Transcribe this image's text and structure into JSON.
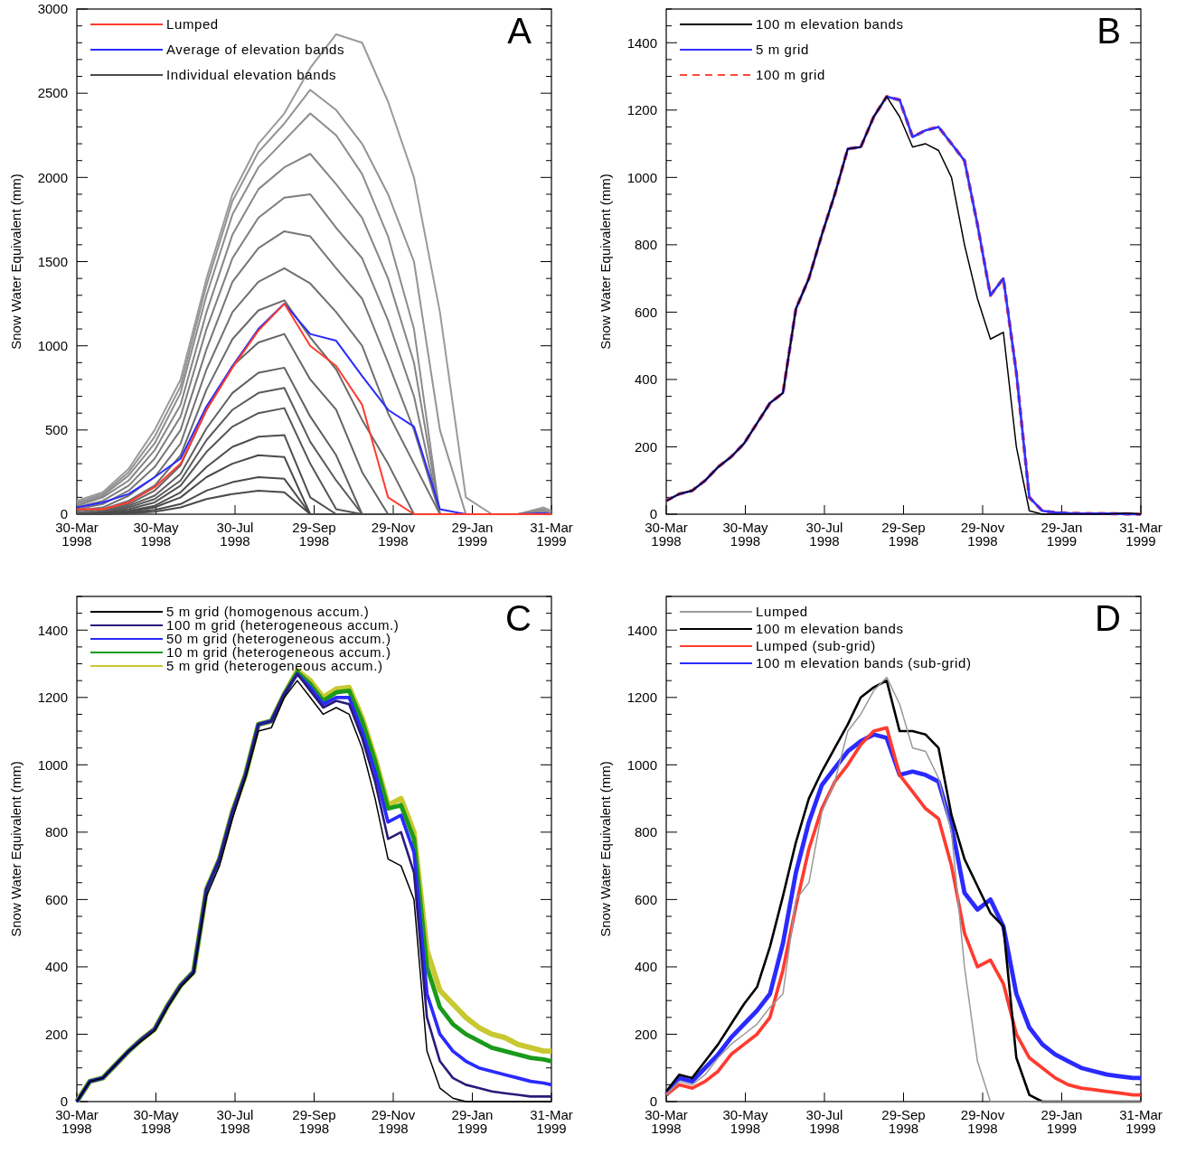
{
  "chart_data": [
    {
      "type": "line",
      "ylabel": "Snow Water Equivalent (mm)",
      "annotations": [
        "A"
      ],
      "legend": "top left",
      "x": [
        "1998-03-30",
        "1998-04-19",
        "1998-05-09",
        "1998-05-29",
        "1998-06-18",
        "1998-07-08",
        "1998-07-28",
        "1998-08-17",
        "1998-09-06",
        "1998-09-26",
        "1998-10-16",
        "1998-11-05",
        "1998-11-25",
        "1998-12-15",
        "1999-01-04",
        "1999-01-24",
        "1999-02-13",
        "1999-03-05",
        "1999-03-25",
        "1999-03-31"
      ],
      "xlim": [
        "1998-03-30",
        "1999-03-31"
      ],
      "xticks": [
        {
          "value": "1998-03-30",
          "label": "30-Mar\n1998"
        },
        {
          "value": "1998-05-30",
          "label": "30-May\n1998"
        },
        {
          "value": "1998-07-30",
          "label": "30-Jul\n1998"
        },
        {
          "value": "1998-09-29",
          "label": "29-Sep\n1998"
        },
        {
          "value": "1998-11-29",
          "label": "29-Nov\n1998"
        },
        {
          "value": "1999-01-29",
          "label": "29-Jan\n1999"
        },
        {
          "value": "1999-03-31",
          "label": "31-Mar\n1999"
        }
      ],
      "ylim": [
        0,
        3000
      ],
      "yticks": [
        0,
        {
          "value": 100,
          "label": null
        },
        {
          "value": 200,
          "label": null
        },
        {
          "value": 300,
          "label": null
        },
        {
          "value": 400,
          "label": null
        },
        500,
        {
          "value": 600,
          "label": null
        },
        {
          "value": 700,
          "label": null
        },
        {
          "value": 800,
          "label": null
        },
        {
          "value": 900,
          "label": null
        },
        1000,
        {
          "value": 1100,
          "label": null
        },
        {
          "value": 1200,
          "label": null
        },
        {
          "value": 1300,
          "label": null
        },
        {
          "value": 1400,
          "label": null
        },
        1500,
        {
          "value": 1600,
          "label": null
        },
        {
          "value": 1700,
          "label": null
        },
        {
          "value": 1800,
          "label": null
        },
        {
          "value": 1900,
          "label": null
        },
        2000,
        {
          "value": 2100,
          "label": null
        },
        {
          "value": 2200,
          "label": null
        },
        {
          "value": 2300,
          "label": null
        },
        {
          "value": 2400,
          "label": null
        },
        2500,
        {
          "value": 2600,
          "label": null
        },
        {
          "value": 2700,
          "label": null
        },
        {
          "value": 2800,
          "label": null
        },
        {
          "value": 2900,
          "label": null
        },
        3000
      ],
      "series": [
        {
          "name": "Lumped",
          "color": "#ff3b2f",
          "values": [
            30,
            30,
            70,
            160,
            300,
            620,
            870,
            1090,
            1250,
            1000,
            880,
            650,
            100,
            0,
            0,
            0,
            0,
            0,
            0,
            0
          ]
        },
        {
          "name": "Average of elevation bands",
          "color": "#2a2aff",
          "values": [
            40,
            70,
            120,
            220,
            330,
            640,
            880,
            1100,
            1250,
            1070,
            1030,
            820,
            620,
            520,
            30,
            0,
            0,
            0,
            5,
            0
          ]
        },
        {
          "name": "Individual elevation bands",
          "color": "#4a4a4a",
          "values": [
            0,
            0,
            5,
            15,
            40,
            90,
            120,
            140,
            130,
            0,
            0,
            0,
            0,
            0,
            0,
            0,
            0,
            0,
            0,
            0
          ]
        },
        {
          "color": "#4a4a4a",
          "values": [
            0,
            0,
            10,
            25,
            60,
            140,
            190,
            220,
            210,
            0,
            0,
            0,
            0,
            0,
            0,
            0,
            0,
            0,
            0,
            0
          ]
        },
        {
          "color": "#4a4a4a",
          "values": [
            0,
            5,
            15,
            40,
            100,
            220,
            300,
            350,
            340,
            0,
            0,
            0,
            0,
            0,
            0,
            0,
            0,
            0,
            0,
            0
          ]
        },
        {
          "color": "#4f4f4f",
          "values": [
            0,
            5,
            20,
            50,
            130,
            280,
            400,
            460,
            470,
            100,
            0,
            0,
            0,
            0,
            0,
            0,
            0,
            0,
            0,
            0
          ]
        },
        {
          "color": "#555555",
          "values": [
            0,
            10,
            30,
            70,
            170,
            370,
            520,
            600,
            630,
            300,
            30,
            0,
            0,
            0,
            0,
            0,
            0,
            0,
            0,
            0
          ]
        },
        {
          "color": "#5a5a5a",
          "values": [
            0,
            10,
            40,
            90,
            200,
            440,
            620,
            720,
            750,
            430,
            200,
            0,
            0,
            0,
            0,
            0,
            0,
            0,
            0,
            0
          ]
        },
        {
          "color": "#5f5f5f",
          "values": [
            0,
            15,
            50,
            110,
            240,
            510,
            720,
            840,
            870,
            580,
            350,
            0,
            0,
            0,
            0,
            0,
            0,
            0,
            0,
            0
          ]
        },
        {
          "color": "#646464",
          "values": [
            0,
            20,
            60,
            140,
            290,
            620,
            880,
            1020,
            1070,
            800,
            620,
            250,
            0,
            0,
            0,
            0,
            0,
            0,
            0,
            0
          ]
        },
        {
          "color": "#6a6a6a",
          "values": [
            10,
            30,
            80,
            170,
            350,
            740,
            1040,
            1210,
            1270,
            1050,
            860,
            560,
            300,
            0,
            0,
            0,
            0,
            0,
            0,
            0
          ]
        },
        {
          "color": "#707070",
          "values": [
            20,
            40,
            110,
            220,
            420,
            860,
            1200,
            1380,
            1460,
            1370,
            1200,
            1000,
            600,
            300,
            0,
            0,
            0,
            0,
            0,
            0
          ]
        },
        {
          "color": "#777777",
          "values": [
            30,
            60,
            140,
            280,
            500,
            980,
            1380,
            1580,
            1680,
            1650,
            1460,
            1280,
            900,
            500,
            0,
            0,
            0,
            0,
            0,
            0
          ]
        },
        {
          "color": "#7e7e7e",
          "values": [
            40,
            80,
            170,
            330,
            580,
            1100,
            1520,
            1760,
            1880,
            1900,
            1700,
            1520,
            1150,
            700,
            0,
            0,
            0,
            0,
            0,
            0
          ]
        },
        {
          "color": "#858585",
          "values": [
            50,
            100,
            200,
            380,
            650,
            1200,
            1660,
            1930,
            2060,
            2140,
            1960,
            1760,
            1400,
            900,
            0,
            0,
            0,
            0,
            10,
            0
          ]
        },
        {
          "color": "#8c8c8c",
          "values": [
            60,
            110,
            230,
            420,
            720,
            1300,
            1780,
            2060,
            2220,
            2380,
            2250,
            2020,
            1650,
            1100,
            0,
            0,
            0,
            0,
            20,
            0
          ]
        },
        {
          "color": "#939393",
          "values": [
            70,
            120,
            250,
            460,
            760,
            1360,
            1860,
            2150,
            2320,
            2520,
            2400,
            2200,
            1900,
            1500,
            500,
            0,
            0,
            0,
            30,
            10
          ]
        },
        {
          "color": "#9a9a9a",
          "values": [
            80,
            130,
            270,
            500,
            800,
            1400,
            1900,
            2200,
            2380,
            2650,
            2850,
            2800,
            2450,
            2000,
            1200,
            100,
            0,
            0,
            40,
            20
          ]
        }
      ]
    },
    {
      "type": "line",
      "ylabel": "Snow Water Equivalent (mm)",
      "annotations": [
        "B"
      ],
      "legend": "top left",
      "x": [
        "1998-03-30",
        "1998-04-09",
        "1998-04-19",
        "1998-04-29",
        "1998-05-09",
        "1998-05-19",
        "1998-05-29",
        "1998-06-08",
        "1998-06-18",
        "1998-06-28",
        "1998-07-08",
        "1998-07-18",
        "1998-07-28",
        "1998-08-07",
        "1998-08-17",
        "1998-08-27",
        "1998-09-06",
        "1998-09-16",
        "1998-09-26",
        "1998-10-06",
        "1998-10-16",
        "1998-10-26",
        "1998-11-05",
        "1998-11-15",
        "1998-11-25",
        "1998-12-05",
        "1998-12-15",
        "1998-12-25",
        "1999-01-04",
        "1999-01-14",
        "1999-01-24",
        "1999-02-03",
        "1999-02-13",
        "1999-02-23",
        "1999-03-05",
        "1999-03-15",
        "1999-03-25",
        "1999-03-31"
      ],
      "xlim": [
        "1998-03-30",
        "1999-03-31"
      ],
      "xticks": [
        {
          "value": "1998-03-30",
          "label": "30-Mar\n1998"
        },
        {
          "value": "1998-05-30",
          "label": "30-May\n1998"
        },
        {
          "value": "1998-07-30",
          "label": "30-Jul\n1998"
        },
        {
          "value": "1998-09-29",
          "label": "29-Sep\n1998"
        },
        {
          "value": "1998-11-29",
          "label": "29-Nov\n1998"
        },
        {
          "value": "1999-01-29",
          "label": "29-Jan\n1999"
        },
        {
          "value": "1999-03-31",
          "label": "31-Mar\n1999"
        }
      ],
      "ylim": [
        0,
        1500
      ],
      "yticks": [
        0,
        {
          "value": 50,
          "label": null
        },
        {
          "value": 100,
          "label": null
        },
        {
          "value": 150,
          "label": null
        },
        200,
        {
          "value": 250,
          "label": null
        },
        {
          "value": 300,
          "label": null
        },
        {
          "value": 350,
          "label": null
        },
        400,
        {
          "value": 450,
          "label": null
        },
        {
          "value": 500,
          "label": null
        },
        {
          "value": 550,
          "label": null
        },
        600,
        {
          "value": 650,
          "label": null
        },
        {
          "value": 700,
          "label": null
        },
        {
          "value": 750,
          "label": null
        },
        800,
        {
          "value": 850,
          "label": null
        },
        {
          "value": 900,
          "label": null
        },
        {
          "value": 950,
          "label": null
        },
        1000,
        {
          "value": 1050,
          "label": null
        },
        {
          "value": 1100,
          "label": null
        },
        {
          "value": 1150,
          "label": null
        },
        1200,
        {
          "value": 1250,
          "label": null
        },
        {
          "value": 1300,
          "label": null
        },
        {
          "value": 1350,
          "label": null
        },
        1400,
        {
          "value": 1450,
          "label": null
        },
        {
          "value": 1500,
          "label": null
        }
      ],
      "series": [
        {
          "name": "100 m elevation bands",
          "color": "#000000",
          "values": [
            40,
            60,
            70,
            100,
            140,
            170,
            210,
            270,
            330,
            360,
            610,
            700,
            830,
            950,
            1085,
            1090,
            1180,
            1240,
            1180,
            1090,
            1100,
            1080,
            1000,
            800,
            640,
            520,
            540,
            200,
            10,
            0,
            0,
            0,
            0,
            0,
            0,
            3,
            3,
            0
          ]
        },
        {
          "name": "5 m grid",
          "color": "#3030ff",
          "values": [
            40,
            60,
            70,
            100,
            140,
            170,
            210,
            270,
            330,
            360,
            610,
            700,
            830,
            950,
            1085,
            1090,
            1180,
            1240,
            1230,
            1120,
            1140,
            1150,
            1100,
            1050,
            860,
            650,
            700,
            420,
            50,
            10,
            5,
            3,
            2,
            2,
            2,
            1,
            0,
            0
          ]
        },
        {
          "name": "100 m grid",
          "color": "#ff4a3a",
          "line_style": "dashed",
          "values": [
            40,
            60,
            70,
            100,
            140,
            170,
            210,
            270,
            330,
            360,
            610,
            700,
            830,
            950,
            1085,
            1090,
            1180,
            1240,
            1230,
            1120,
            1140,
            1150,
            1100,
            1050,
            860,
            650,
            700,
            420,
            50,
            10,
            5,
            3,
            2,
            2,
            2,
            1,
            0,
            0
          ]
        }
      ]
    },
    {
      "type": "line",
      "ylabel": "Snow Water Equivalent (mm)",
      "annotations": [
        "C"
      ],
      "legend": "top left",
      "x": [
        "1998-03-30",
        "1998-04-09",
        "1998-04-19",
        "1998-04-29",
        "1998-05-09",
        "1998-05-19",
        "1998-05-29",
        "1998-06-08",
        "1998-06-18",
        "1998-06-28",
        "1998-07-08",
        "1998-07-18",
        "1998-07-28",
        "1998-08-07",
        "1998-08-17",
        "1998-08-27",
        "1998-09-06",
        "1998-09-16",
        "1998-09-26",
        "1998-10-06",
        "1998-10-16",
        "1998-10-26",
        "1998-11-05",
        "1998-11-15",
        "1998-11-25",
        "1998-12-05",
        "1998-12-15",
        "1998-12-25",
        "1999-01-04",
        "1999-01-14",
        "1999-01-24",
        "1999-02-03",
        "1999-02-13",
        "1999-02-23",
        "1999-03-05",
        "1999-03-15",
        "1999-03-25",
        "1999-03-31"
      ],
      "xlim": [
        "1998-03-30",
        "1999-03-31"
      ],
      "xticks": [
        {
          "value": "1998-03-30",
          "label": "30-Mar\n1998"
        },
        {
          "value": "1998-05-30",
          "label": "30-May\n1998"
        },
        {
          "value": "1998-07-30",
          "label": "30-Jul\n1998"
        },
        {
          "value": "1998-09-29",
          "label": "29-Sep\n1998"
        },
        {
          "value": "1998-11-29",
          "label": "29-Nov\n1998"
        },
        {
          "value": "1999-01-29",
          "label": "29-Jan\n1999"
        },
        {
          "value": "1999-03-31",
          "label": "31-Mar\n1999"
        }
      ],
      "ylim": [
        0,
        1500
      ],
      "yticks": [
        0,
        {
          "value": 50,
          "label": null
        },
        {
          "value": 100,
          "label": null
        },
        {
          "value": 150,
          "label": null
        },
        200,
        {
          "value": 250,
          "label": null
        },
        {
          "value": 300,
          "label": null
        },
        {
          "value": 350,
          "label": null
        },
        400,
        {
          "value": 450,
          "label": null
        },
        {
          "value": 500,
          "label": null
        },
        {
          "value": 550,
          "label": null
        },
        600,
        {
          "value": 650,
          "label": null
        },
        {
          "value": 700,
          "label": null
        },
        {
          "value": 750,
          "label": null
        },
        800,
        {
          "value": 850,
          "label": null
        },
        {
          "value": 900,
          "label": null
        },
        {
          "value": 950,
          "label": null
        },
        1000,
        {
          "value": 1050,
          "label": null
        },
        {
          "value": 1100,
          "label": null
        },
        {
          "value": 1150,
          "label": null
        },
        1200,
        {
          "value": 1250,
          "label": null
        },
        {
          "value": 1300,
          "label": null
        },
        {
          "value": 1350,
          "label": null
        },
        1400,
        {
          "value": 1450,
          "label": null
        },
        {
          "value": 1500,
          "label": null
        }
      ],
      "series": [
        {
          "name": "5 m grid (homogenous accum.)",
          "color": "#000000",
          "values": [
            0,
            60,
            70,
            110,
            150,
            180,
            210,
            280,
            340,
            380,
            610,
            700,
            840,
            960,
            1100,
            1110,
            1200,
            1250,
            1200,
            1150,
            1170,
            1150,
            1050,
            900,
            720,
            700,
            600,
            150,
            40,
            10,
            0,
            0,
            0,
            0,
            0,
            0,
            0,
            0
          ]
        },
        {
          "name": "100 m grid (heterogeneous accum.)",
          "color": "#2a1a7a",
          "values": [
            0,
            60,
            70,
            110,
            150,
            185,
            215,
            285,
            345,
            385,
            630,
            720,
            860,
            970,
            1120,
            1130,
            1210,
            1270,
            1220,
            1170,
            1190,
            1180,
            1080,
            950,
            780,
            800,
            680,
            250,
            120,
            70,
            50,
            40,
            30,
            25,
            20,
            15,
            15,
            15
          ]
        },
        {
          "name": "50 m grid (heterogeneous accum.)",
          "color": "#2a2aff",
          "values": [
            0,
            60,
            70,
            110,
            150,
            185,
            215,
            285,
            345,
            385,
            630,
            720,
            860,
            970,
            1120,
            1130,
            1210,
            1270,
            1230,
            1180,
            1200,
            1200,
            1100,
            980,
            830,
            850,
            740,
            320,
            200,
            150,
            120,
            100,
            90,
            80,
            70,
            60,
            55,
            50
          ]
        },
        {
          "name": "10 m grid (heterogeneous accum.)",
          "color": "#1a9a1a",
          "values": [
            0,
            60,
            70,
            110,
            150,
            185,
            215,
            285,
            345,
            385,
            630,
            720,
            860,
            970,
            1120,
            1130,
            1210,
            1275,
            1240,
            1190,
            1215,
            1220,
            1130,
            1010,
            870,
            880,
            780,
            400,
            280,
            230,
            200,
            180,
            160,
            150,
            140,
            130,
            125,
            120
          ]
        },
        {
          "name": "5 m grid (heterogeneous accum.)",
          "color": "#c8c830",
          "values": [
            0,
            60,
            70,
            110,
            150,
            185,
            215,
            285,
            345,
            385,
            630,
            720,
            860,
            970,
            1120,
            1130,
            1210,
            1280,
            1250,
            1200,
            1225,
            1230,
            1140,
            1020,
            880,
            900,
            800,
            450,
            330,
            290,
            250,
            220,
            200,
            190,
            170,
            160,
            150,
            150
          ]
        }
      ]
    },
    {
      "type": "line",
      "ylabel": "Snow Water Equivalent (mm)",
      "annotations": [
        "D"
      ],
      "legend": "top left",
      "x": [
        "1998-03-30",
        "1998-04-09",
        "1998-04-19",
        "1998-04-29",
        "1998-05-09",
        "1998-05-19",
        "1998-05-29",
        "1998-06-08",
        "1998-06-18",
        "1998-06-28",
        "1998-07-08",
        "1998-07-18",
        "1998-07-28",
        "1998-08-07",
        "1998-08-17",
        "1998-08-27",
        "1998-09-06",
        "1998-09-16",
        "1998-09-26",
        "1998-10-06",
        "1998-10-16",
        "1998-10-26",
        "1998-11-05",
        "1998-11-15",
        "1998-11-25",
        "1998-12-05",
        "1998-12-15",
        "1998-12-25",
        "1999-01-04",
        "1999-01-14",
        "1999-01-24",
        "1999-02-03",
        "1999-02-13",
        "1999-02-23",
        "1999-03-05",
        "1999-03-15",
        "1999-03-25",
        "1999-03-31"
      ],
      "xlim": [
        "1998-03-30",
        "1999-03-31"
      ],
      "xticks": [
        {
          "value": "1998-03-30",
          "label": "30-Mar\n1998"
        },
        {
          "value": "1998-05-30",
          "label": "30-May\n1998"
        },
        {
          "value": "1998-07-30",
          "label": "30-Jul\n1998"
        },
        {
          "value": "1998-09-29",
          "label": "29-Sep\n1998"
        },
        {
          "value": "1998-11-29",
          "label": "29-Nov\n1998"
        },
        {
          "value": "1999-01-29",
          "label": "29-Jan\n1999"
        },
        {
          "value": "1999-03-31",
          "label": "31-Mar\n1999"
        }
      ],
      "ylim": [
        0,
        1500
      ],
      "yticks": [
        0,
        {
          "value": 50,
          "label": null
        },
        {
          "value": 100,
          "label": null
        },
        {
          "value": 150,
          "label": null
        },
        200,
        {
          "value": 250,
          "label": null
        },
        {
          "value": 300,
          "label": null
        },
        {
          "value": 350,
          "label": null
        },
        400,
        {
          "value": 450,
          "label": null
        },
        {
          "value": 500,
          "label": null
        },
        {
          "value": 550,
          "label": null
        },
        600,
        {
          "value": 650,
          "label": null
        },
        {
          "value": 700,
          "label": null
        },
        {
          "value": 750,
          "label": null
        },
        800,
        {
          "value": 850,
          "label": null
        },
        {
          "value": 900,
          "label": null
        },
        {
          "value": 950,
          "label": null
        },
        1000,
        {
          "value": 1050,
          "label": null
        },
        {
          "value": 1100,
          "label": null
        },
        {
          "value": 1150,
          "label": null
        },
        1200,
        {
          "value": 1250,
          "label": null
        },
        {
          "value": 1300,
          "label": null
        },
        {
          "value": 1350,
          "label": null
        },
        1400,
        {
          "value": 1450,
          "label": null
        },
        {
          "value": 1500,
          "label": null
        }
      ],
      "series": [
        {
          "name": "Lumped",
          "color": "#999999",
          "values": [
            20,
            60,
            50,
            80,
            130,
            170,
            200,
            230,
            280,
            320,
            600,
            650,
            860,
            950,
            1100,
            1150,
            1220,
            1260,
            1180,
            1050,
            1040,
            960,
            800,
            400,
            120,
            0,
            0,
            0,
            0,
            0,
            0,
            0,
            0,
            0,
            0,
            0,
            0,
            0
          ]
        },
        {
          "name": "100 m elevation bands",
          "color": "#000000",
          "values": [
            30,
            80,
            70,
            120,
            170,
            230,
            290,
            340,
            460,
            610,
            770,
            900,
            980,
            1050,
            1120,
            1200,
            1230,
            1250,
            1100,
            1100,
            1090,
            1050,
            850,
            720,
            640,
            560,
            520,
            130,
            20,
            0,
            0,
            0,
            0,
            0,
            0,
            0,
            0,
            0
          ]
        },
        {
          "name": "Lumped (sub-grid)",
          "color": "#ff3b2f",
          "values": [
            20,
            50,
            40,
            60,
            90,
            140,
            170,
            200,
            250,
            390,
            580,
            750,
            870,
            950,
            1000,
            1060,
            1100,
            1110,
            970,
            920,
            870,
            840,
            700,
            500,
            400,
            420,
            350,
            200,
            130,
            100,
            70,
            50,
            40,
            35,
            30,
            25,
            20,
            20
          ]
        },
        {
          "name": "100 m elevation bands (sub-grid)",
          "color": "#2a2aff",
          "values": [
            20,
            70,
            60,
            100,
            140,
            190,
            230,
            270,
            320,
            470,
            680,
            830,
            940,
            990,
            1040,
            1070,
            1090,
            1080,
            970,
            980,
            970,
            950,
            820,
            620,
            570,
            600,
            520,
            320,
            220,
            170,
            140,
            120,
            100,
            90,
            80,
            75,
            70,
            70
          ]
        }
      ]
    }
  ]
}
